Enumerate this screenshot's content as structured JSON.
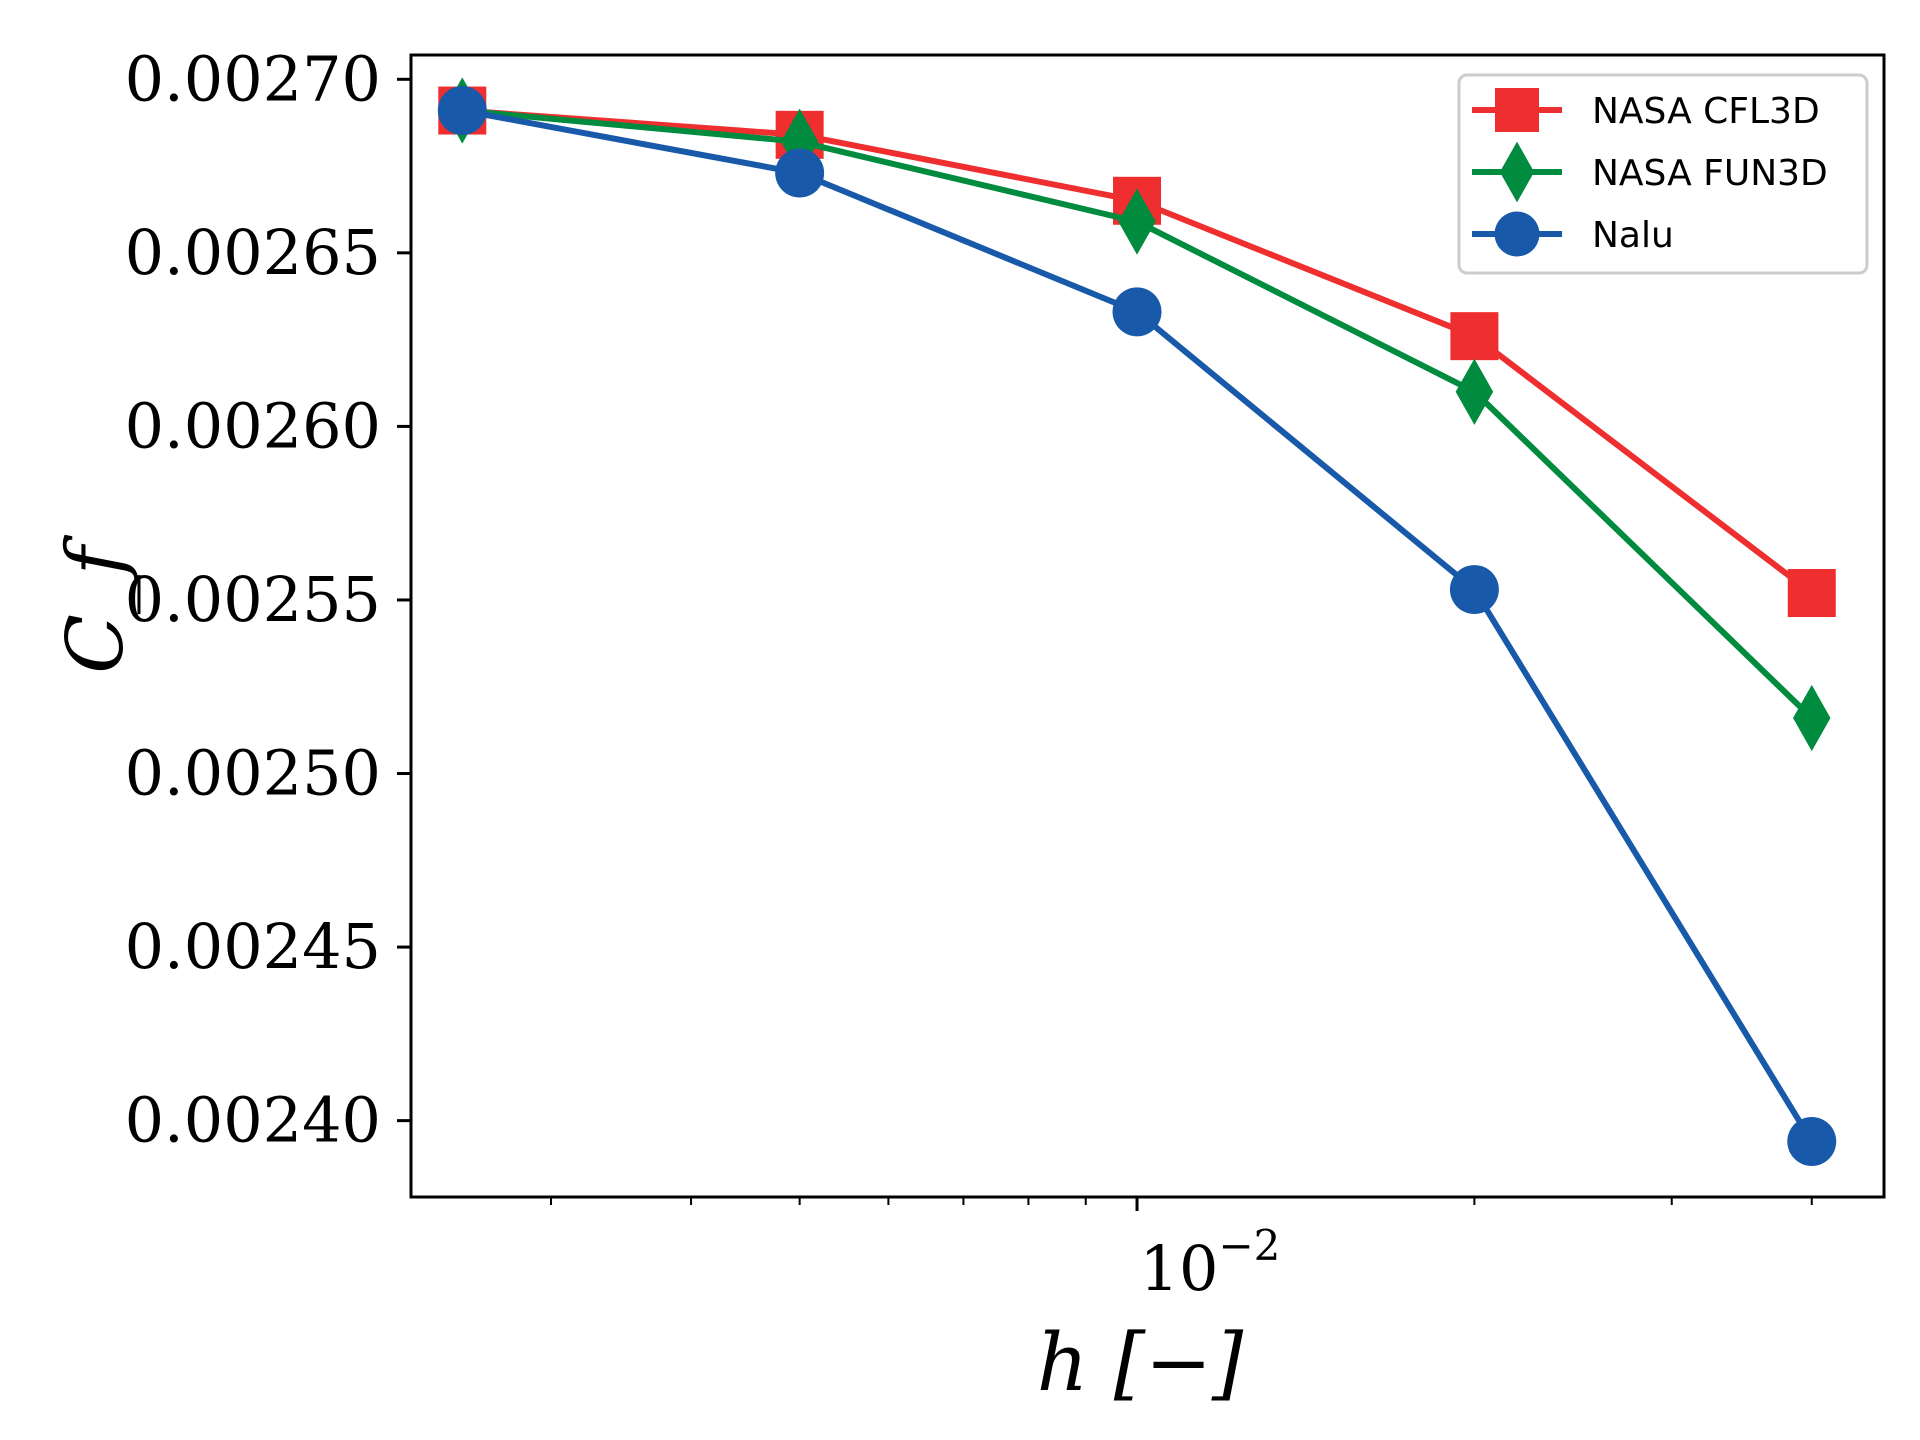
{
  "chart_data": {
    "type": "line",
    "title": "",
    "xlabel": "h [−]",
    "ylabel": "C_f",
    "xscale": "log",
    "xlim": [
      0.00225,
      0.0464
    ],
    "ylim": [
      0.002378,
      0.002707
    ],
    "x_tick_label": {
      "base": "10",
      "exponent": "−2",
      "value": 0.01
    },
    "y_ticks": [
      0.0024,
      0.00245,
      0.0025,
      0.00255,
      0.0026,
      0.00265,
      0.0027
    ],
    "y_tick_labels": [
      "0.00240",
      "0.00245",
      "0.00250",
      "0.00255",
      "0.00260",
      "0.00265",
      "0.00270"
    ],
    "grid": false,
    "legend_position": "top-right",
    "series": [
      {
        "name": "NASA CFL3D",
        "color": "#ee2e2f",
        "marker": "square",
        "x": [
          0.0025,
          0.005,
          0.01,
          0.02,
          0.04
        ],
        "y": [
          0.002691,
          0.002684,
          0.002665,
          0.002626,
          0.002552
        ]
      },
      {
        "name": "NASA FUN3D",
        "color": "#008b3f",
        "marker": "diamond",
        "x": [
          0.0025,
          0.005,
          0.01,
          0.02,
          0.04
        ],
        "y": [
          0.002691,
          0.002682,
          0.002659,
          0.00261,
          0.002516
        ]
      },
      {
        "name": "Nalu",
        "color": "#185aa9",
        "marker": "circle",
        "x": [
          0.0025,
          0.005,
          0.01,
          0.02,
          0.04
        ],
        "y": [
          0.002691,
          0.002673,
          0.002633,
          0.002553,
          0.002394
        ]
      }
    ]
  }
}
